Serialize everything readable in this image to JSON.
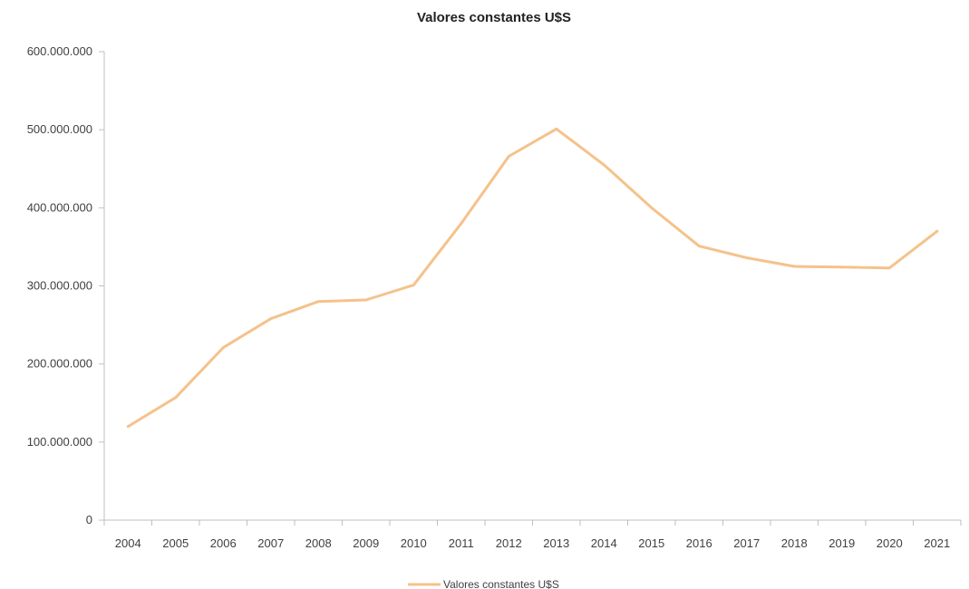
{
  "chart_data": {
    "type": "line",
    "title": "Valores constantes U$S",
    "xlabel": "",
    "ylabel": "",
    "categories": [
      "2004",
      "2005",
      "2006",
      "2007",
      "2008",
      "2009",
      "2010",
      "2011",
      "2012",
      "2013",
      "2014",
      "2015",
      "2016",
      "2017",
      "2018",
      "2019",
      "2020",
      "2021"
    ],
    "series": [
      {
        "name": "Valores constantes U$S",
        "color": "#F5C28B",
        "values": [
          120000000,
          157000000,
          221000000,
          258000000,
          280000000,
          282000000,
          301000000,
          380000000,
          466000000,
          501000000,
          455000000,
          400000000,
          351000000,
          336000000,
          325000000,
          324000000,
          323000000,
          370000000
        ]
      }
    ],
    "ylim": [
      0,
      600000000
    ],
    "yticks": [
      0,
      100000000,
      200000000,
      300000000,
      400000000,
      500000000,
      600000000
    ],
    "ytick_labels": [
      "0",
      "100.000.000",
      "200.000.000",
      "300.000.000",
      "400.000.000",
      "500.000.000",
      "600.000.000"
    ],
    "grid": false,
    "legend_position": "bottom"
  }
}
